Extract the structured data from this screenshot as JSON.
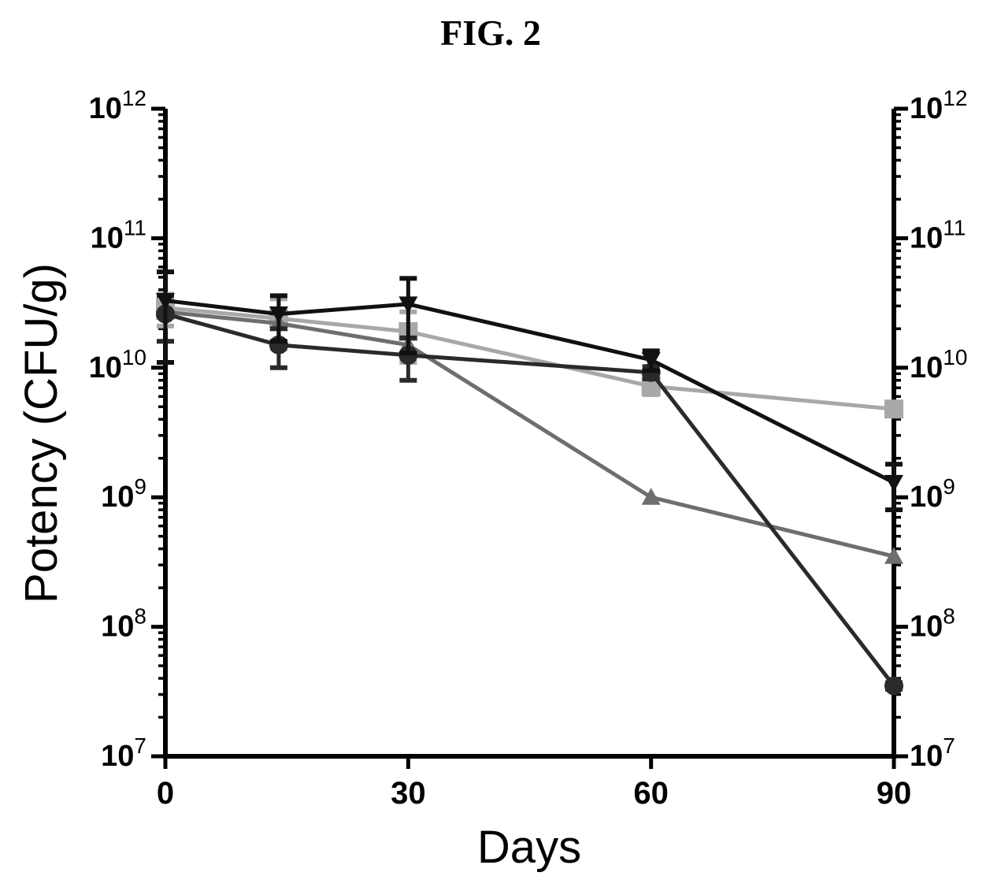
{
  "figure_label": "FIG. 2",
  "chart_data": {
    "type": "line",
    "title": "",
    "xlabel": "Days",
    "ylabel": "Potency (CFU/g)",
    "xlim": [
      0,
      90
    ],
    "ylim": [
      10000000.0,
      1000000000000.0
    ],
    "y_scale": "log",
    "right_axis": true,
    "grid": false,
    "legend": "none",
    "x_ticks": [
      "0",
      "30",
      "60",
      "90"
    ],
    "y_ticks": [
      {
        "base": "10",
        "exp": "7"
      },
      {
        "base": "10",
        "exp": "8"
      },
      {
        "base": "10",
        "exp": "9"
      },
      {
        "base": "10",
        "exp": "10"
      },
      {
        "base": "10",
        "exp": "11"
      },
      {
        "base": "10",
        "exp": "12"
      }
    ],
    "series": [
      {
        "marker": "triangle-down",
        "color": "#111111",
        "x": [
          0,
          14,
          30,
          60,
          90
        ],
        "y": [
          33000000000.0,
          26000000000.0,
          31000000000.0,
          11500000000.0,
          1300000000.0
        ],
        "err": [
          22000000000.0,
          10000000000.0,
          18000000000.0,
          2000000000.0,
          500000000.0
        ]
      },
      {
        "marker": "circle",
        "color": "#2a2a2a",
        "x": [
          0,
          14,
          30,
          60,
          90
        ],
        "y": [
          26000000000.0,
          15000000000.0,
          12500000000.0,
          9200000000.0,
          35000000.0
        ],
        "err": [
          10000000000.0,
          5000000000.0,
          4500000000.0,
          1000000000.0,
          2000000.0
        ]
      },
      {
        "marker": "triangle-up",
        "color": "#6e6e6e",
        "x": [
          0,
          14,
          30,
          60,
          90
        ],
        "y": [
          27000000000.0,
          22000000000.0,
          15000000000.0,
          1000000000.0,
          350000000.0
        ],
        "err": [
          0,
          0,
          0,
          0,
          0
        ]
      },
      {
        "marker": "square",
        "color": "#a8a8a8",
        "x": [
          0,
          14,
          30,
          60,
          90
        ],
        "y": [
          29000000000.0,
          24000000000.0,
          19000000000.0,
          7200000000.0,
          4800000000.0
        ],
        "err": [
          8000000000.0,
          10000000000.0,
          8000000000.0,
          1000000000.0,
          500000000.0
        ]
      }
    ]
  }
}
